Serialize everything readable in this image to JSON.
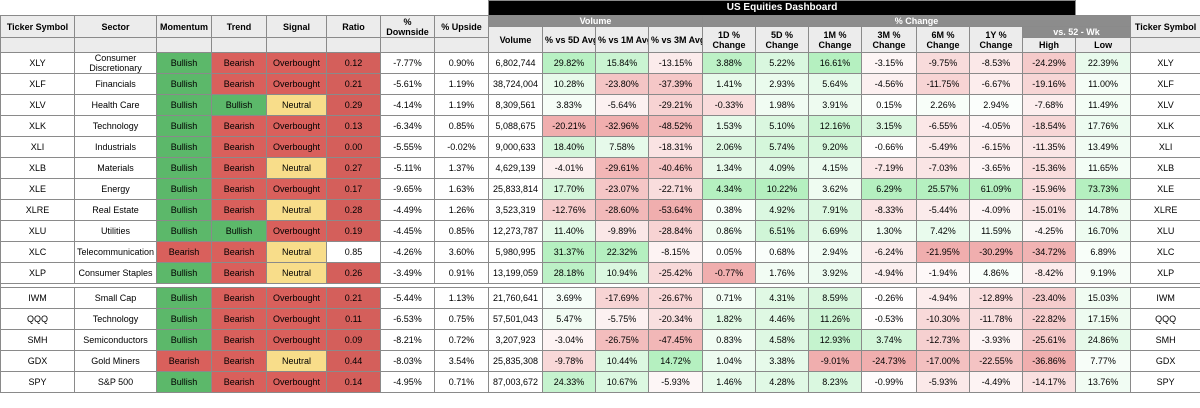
{
  "title": "US Equities Dashboard",
  "groups": {
    "volume": "Volume",
    "pct_change": "% Change",
    "vs52": "vs. 52 - Wk"
  },
  "headers": {
    "ticker": "Ticker Symbol",
    "sector": "Sector",
    "momentum": "Momentum",
    "trend": "Trend",
    "signal": "Signal",
    "ratio": "Ratio",
    "downside": "% Downside",
    "upside": "% Upside",
    "volume": "Volume",
    "v5d": "% vs 5D Avg",
    "v1m": "% vs 1M Avg",
    "v3m": "% vs 3M Avg",
    "c1d": "1D % Change",
    "c5d": "5D % Change",
    "c1m": "1M % Change",
    "c3m": "3M % Change",
    "c6m": "6M % Change",
    "c1y": "1Y % Change",
    "high": "High",
    "low": "Low",
    "ticker_right": "Ticker Symbol"
  },
  "colors": {
    "bullish": "#5cb86a",
    "bearish": "#d9605c",
    "overbought": "#d9605c",
    "neutral": "#f8dd8a",
    "ratio_red": "#d45f5b"
  },
  "rows": [
    {
      "ticker": "XLY",
      "sector": "Consumer Discretionary",
      "momentum": "Bullish",
      "trend": "Bearish",
      "signal": "Overbought",
      "ratio": "0.12",
      "downside": "-7.77%",
      "upside": "0.90%",
      "volume": "6,802,744",
      "v5d": "29.82%",
      "v1m": "15.84%",
      "v3m": "-13.15%",
      "c1d": "3.88%",
      "c5d": "5.22%",
      "c1m": "16.61%",
      "c3m": "-3.15%",
      "c6m": "-9.75%",
      "c1y": "-8.53%",
      "high": "-24.29%",
      "low": "22.39%"
    },
    {
      "ticker": "XLF",
      "sector": "Financials",
      "momentum": "Bullish",
      "trend": "Bearish",
      "signal": "Overbought",
      "ratio": "0.21",
      "downside": "-5.61%",
      "upside": "1.19%",
      "volume": "38,724,004",
      "v5d": "10.28%",
      "v1m": "-23.80%",
      "v3m": "-37.39%",
      "c1d": "1.41%",
      "c5d": "2.93%",
      "c1m": "5.64%",
      "c3m": "-4.56%",
      "c6m": "-11.75%",
      "c1y": "-6.67%",
      "high": "-19.16%",
      "low": "11.00%"
    },
    {
      "ticker": "XLV",
      "sector": "Health Care",
      "momentum": "Bullish",
      "trend": "Bullish",
      "signal": "Neutral",
      "ratio": "0.29",
      "downside": "-4.14%",
      "upside": "1.19%",
      "volume": "8,309,561",
      "v5d": "3.83%",
      "v1m": "-5.64%",
      "v3m": "-29.21%",
      "c1d": "-0.33%",
      "c5d": "1.98%",
      "c1m": "3.91%",
      "c3m": "0.15%",
      "c6m": "2.26%",
      "c1y": "2.94%",
      "high": "-7.68%",
      "low": "11.49%"
    },
    {
      "ticker": "XLK",
      "sector": "Technology",
      "momentum": "Bullish",
      "trend": "Bearish",
      "signal": "Overbought",
      "ratio": "0.13",
      "downside": "-6.34%",
      "upside": "0.85%",
      "volume": "5,088,675",
      "v5d": "-20.21%",
      "v1m": "-32.96%",
      "v3m": "-48.52%",
      "c1d": "1.53%",
      "c5d": "5.10%",
      "c1m": "12.16%",
      "c3m": "3.15%",
      "c6m": "-6.55%",
      "c1y": "-4.05%",
      "high": "-18.54%",
      "low": "17.76%"
    },
    {
      "ticker": "XLI",
      "sector": "Industrials",
      "momentum": "Bullish",
      "trend": "Bearish",
      "signal": "Overbought",
      "ratio": "0.00",
      "downside": "-5.55%",
      "upside": "-0.02%",
      "volume": "9,000,633",
      "v5d": "18.40%",
      "v1m": "7.58%",
      "v3m": "-18.31%",
      "c1d": "2.06%",
      "c5d": "5.74%",
      "c1m": "9.20%",
      "c3m": "-0.66%",
      "c6m": "-5.49%",
      "c1y": "-6.15%",
      "high": "-11.35%",
      "low": "13.49%"
    },
    {
      "ticker": "XLB",
      "sector": "Materials",
      "momentum": "Bullish",
      "trend": "Bearish",
      "signal": "Neutral",
      "ratio": "0.27",
      "downside": "-5.11%",
      "upside": "1.37%",
      "volume": "4,629,139",
      "v5d": "-4.01%",
      "v1m": "-29.61%",
      "v3m": "-40.46%",
      "c1d": "1.34%",
      "c5d": "4.09%",
      "c1m": "4.15%",
      "c3m": "-7.19%",
      "c6m": "-7.03%",
      "c1y": "-3.65%",
      "high": "-15.36%",
      "low": "11.65%"
    },
    {
      "ticker": "XLE",
      "sector": "Energy",
      "momentum": "Bullish",
      "trend": "Bearish",
      "signal": "Overbought",
      "ratio": "0.17",
      "downside": "-9.65%",
      "upside": "1.63%",
      "volume": "25,833,814",
      "v5d": "17.70%",
      "v1m": "-23.07%",
      "v3m": "-22.71%",
      "c1d": "4.34%",
      "c5d": "10.22%",
      "c1m": "3.62%",
      "c3m": "6.29%",
      "c6m": "25.57%",
      "c1y": "61.09%",
      "high": "-15.96%",
      "low": "73.73%"
    },
    {
      "ticker": "XLRE",
      "sector": "Real Estate",
      "momentum": "Bullish",
      "trend": "Bearish",
      "signal": "Neutral",
      "ratio": "0.28",
      "downside": "-4.49%",
      "upside": "1.26%",
      "volume": "3,523,319",
      "v5d": "-12.76%",
      "v1m": "-28.60%",
      "v3m": "-53.64%",
      "c1d": "0.38%",
      "c5d": "4.92%",
      "c1m": "7.91%",
      "c3m": "-8.33%",
      "c6m": "-5.44%",
      "c1y": "-4.09%",
      "high": "-15.01%",
      "low": "14.78%"
    },
    {
      "ticker": "XLU",
      "sector": "Utilities",
      "momentum": "Bullish",
      "trend": "Bullish",
      "signal": "Overbought",
      "ratio": "0.19",
      "downside": "-4.45%",
      "upside": "0.85%",
      "volume": "12,273,787",
      "v5d": "11.40%",
      "v1m": "-9.89%",
      "v3m": "-28.84%",
      "c1d": "0.86%",
      "c5d": "6.51%",
      "c1m": "6.69%",
      "c3m": "1.30%",
      "c6m": "7.42%",
      "c1y": "11.59%",
      "high": "-4.25%",
      "low": "16.70%"
    },
    {
      "ticker": "XLC",
      "sector": "Telecommunication",
      "momentum": "Bearish",
      "trend": "Bearish",
      "signal": "Neutral",
      "ratio": "0.85",
      "downside": "-4.26%",
      "upside": "3.60%",
      "volume": "5,980,995",
      "v5d": "31.37%",
      "v1m": "22.32%",
      "v3m": "-8.15%",
      "c1d": "0.05%",
      "c5d": "0.68%",
      "c1m": "2.94%",
      "c3m": "-6.24%",
      "c6m": "-21.95%",
      "c1y": "-30.29%",
      "high": "-34.72%",
      "low": "6.89%"
    },
    {
      "ticker": "XLP",
      "sector": "Consumer Staples",
      "momentum": "Bullish",
      "trend": "Bearish",
      "signal": "Neutral",
      "ratio": "0.26",
      "downside": "-3.49%",
      "upside": "0.91%",
      "volume": "13,199,059",
      "v5d": "28.18%",
      "v1m": "10.94%",
      "v3m": "-25.42%",
      "c1d": "-0.77%",
      "c5d": "1.76%",
      "c1m": "3.92%",
      "c3m": "-4.94%",
      "c6m": "-1.94%",
      "c1y": "4.86%",
      "high": "-8.42%",
      "low": "9.19%"
    },
    {
      "ticker": "IWM",
      "sector": "Small Cap",
      "momentum": "Bullish",
      "trend": "Bearish",
      "signal": "Overbought",
      "ratio": "0.21",
      "downside": "-5.44%",
      "upside": "1.13%",
      "volume": "21,760,641",
      "v5d": "3.69%",
      "v1m": "-17.69%",
      "v3m": "-26.67%",
      "c1d": "0.71%",
      "c5d": "4.31%",
      "c1m": "8.59%",
      "c3m": "-0.26%",
      "c6m": "-4.94%",
      "c1y": "-12.89%",
      "high": "-23.40%",
      "low": "15.03%"
    },
    {
      "ticker": "QQQ",
      "sector": "Technology",
      "momentum": "Bullish",
      "trend": "Bearish",
      "signal": "Overbought",
      "ratio": "0.11",
      "downside": "-6.53%",
      "upside": "0.75%",
      "volume": "57,501,043",
      "v5d": "5.47%",
      "v1m": "-5.75%",
      "v3m": "-20.34%",
      "c1d": "1.82%",
      "c5d": "4.46%",
      "c1m": "11.26%",
      "c3m": "-0.53%",
      "c6m": "-10.30%",
      "c1y": "-11.78%",
      "high": "-22.82%",
      "low": "17.15%"
    },
    {
      "ticker": "SMH",
      "sector": "Semiconductors",
      "momentum": "Bullish",
      "trend": "Bearish",
      "signal": "Overbought",
      "ratio": "0.09",
      "downside": "-8.21%",
      "upside": "0.72%",
      "volume": "3,207,923",
      "v5d": "-3.04%",
      "v1m": "-26.75%",
      "v3m": "-47.45%",
      "c1d": "0.83%",
      "c5d": "4.58%",
      "c1m": "12.93%",
      "c3m": "3.74%",
      "c6m": "-12.73%",
      "c1y": "-3.93%",
      "high": "-25.61%",
      "low": "24.86%"
    },
    {
      "ticker": "GDX",
      "sector": "Gold Miners",
      "momentum": "Bearish",
      "trend": "Bearish",
      "signal": "Neutral",
      "ratio": "0.44",
      "downside": "-8.03%",
      "upside": "3.54%",
      "volume": "25,835,308",
      "v5d": "-9.78%",
      "v1m": "10.44%",
      "v3m": "14.72%",
      "c1d": "1.04%",
      "c5d": "3.38%",
      "c1m": "-9.01%",
      "c3m": "-24.73%",
      "c6m": "-17.00%",
      "c1y": "-22.55%",
      "high": "-36.86%",
      "low": "7.77%"
    },
    {
      "ticker": "SPY",
      "sector": "S&P 500",
      "momentum": "Bullish",
      "trend": "Bearish",
      "signal": "Overbought",
      "ratio": "0.14",
      "downside": "-4.95%",
      "upside": "0.71%",
      "volume": "87,003,672",
      "v5d": "24.33%",
      "v1m": "10.67%",
      "v3m": "-5.93%",
      "c1d": "1.46%",
      "c5d": "4.28%",
      "c1m": "8.23%",
      "c3m": "-0.99%",
      "c6m": "-5.93%",
      "c1y": "-4.49%",
      "high": "-14.17%",
      "low": "13.76%"
    }
  ]
}
